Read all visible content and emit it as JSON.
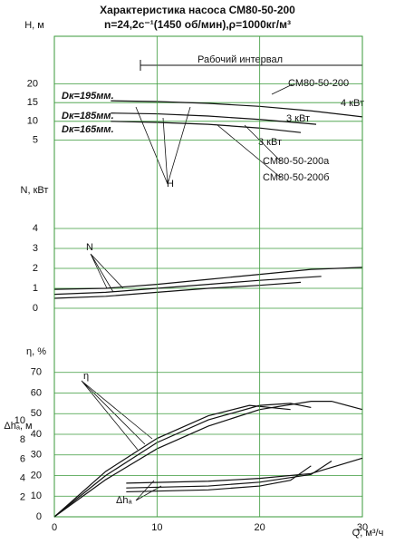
{
  "chart_data": [
    {
      "type": "line",
      "title": "Характеристика насоса СМ80-50-200",
      "subtitle": "n=24,2c⁻¹(1450 об/мин),ρ=1000кг/м³",
      "ylabel": "H, м",
      "xlim": [
        0,
        30
      ],
      "ylim": [
        0,
        25
      ],
      "yticks": [
        5,
        10,
        15,
        20
      ],
      "grid": true,
      "series": [
        {
          "name": "СМ80-50-200",
          "color": "#111111",
          "x": [
            5.5,
            10,
            15,
            20,
            25,
            30
          ],
          "values": [
            15.5,
            15.3,
            14.8,
            14,
            12.8,
            11.2
          ]
        },
        {
          "name": "СМ80-50-200а",
          "color": "#111111",
          "x": [
            5.5,
            10,
            15,
            20,
            25.5
          ],
          "values": [
            12.2,
            12,
            11.4,
            10.5,
            9.2
          ]
        },
        {
          "name": "СМ80-50-200б",
          "color": "#111111",
          "x": [
            5.5,
            10,
            15,
            20,
            24
          ],
          "values": [
            10,
            9.7,
            9.2,
            8.2,
            7
          ]
        }
      ],
      "annotations": [
        "Рабочий интервал",
        "Dк=195мм.",
        "Dк=185мм.",
        "Dк=165мм.",
        "4 кВт",
        "3 кВт",
        "3 кВт",
        "H"
      ]
    },
    {
      "type": "line",
      "ylabel": "N, кВт",
      "xlim": [
        0,
        30
      ],
      "ylim": [
        0,
        5
      ],
      "yticks": [
        0,
        1,
        2,
        3,
        4
      ],
      "grid": true,
      "series": [
        {
          "color": "#111111",
          "x": [
            0,
            5,
            10,
            15,
            20,
            25,
            30
          ],
          "values": [
            0.95,
            1,
            1.2,
            1.45,
            1.7,
            1.95,
            2.05
          ]
        },
        {
          "color": "#111111",
          "x": [
            0,
            5,
            10,
            15,
            20,
            26
          ],
          "values": [
            0.7,
            0.8,
            1,
            1.2,
            1.4,
            1.6
          ]
        },
        {
          "color": "#111111",
          "x": [
            0,
            5,
            10,
            15,
            20,
            24
          ],
          "values": [
            0.5,
            0.6,
            0.8,
            1,
            1.15,
            1.3
          ]
        }
      ],
      "annotations": [
        "N"
      ]
    },
    {
      "type": "line",
      "ylabel": "η, %",
      "xlim": [
        0,
        30
      ],
      "ylim": [
        0,
        80
      ],
      "yticks": [
        0,
        10,
        20,
        30,
        40,
        50,
        60,
        70
      ],
      "grid": true,
      "series": [
        {
          "color": "#111111",
          "x": [
            0,
            5,
            10,
            15,
            20,
            25,
            27,
            30
          ],
          "values": [
            0,
            18,
            33,
            44,
            52,
            56,
            56,
            52
          ]
        },
        {
          "color": "#111111",
          "x": [
            0,
            5,
            10,
            15,
            20,
            23,
            25
          ],
          "values": [
            0,
            20,
            36,
            47,
            54,
            55,
            53
          ]
        },
        {
          "color": "#111111",
          "x": [
            0,
            5,
            10,
            15,
            19,
            23
          ],
          "values": [
            0,
            22,
            38,
            49,
            54,
            52
          ]
        }
      ],
      "annotations": [
        "η"
      ]
    },
    {
      "type": "line",
      "ylabel": "Δhₐ, м",
      "xlabel": "Q, м³/ч",
      "xlim": [
        0,
        30
      ],
      "xticks": [
        0,
        10,
        20,
        30
      ],
      "ylim": [
        0,
        10
      ],
      "yticks": [
        2,
        4,
        6,
        8,
        10
      ],
      "grid": false,
      "series": [
        {
          "color": "#111111",
          "x": [
            7,
            15,
            20,
            25,
            30
          ],
          "values": [
            3.5,
            3.7,
            4,
            4.5,
            6.1
          ]
        },
        {
          "color": "#111111",
          "x": [
            7,
            15,
            20,
            25,
            27
          ],
          "values": [
            3,
            3.2,
            3.6,
            4.4,
            5.8
          ]
        },
        {
          "color": "#111111",
          "x": [
            7,
            15,
            20,
            23,
            25
          ],
          "values": [
            2.6,
            2.8,
            3.2,
            3.8,
            5.3
          ]
        }
      ],
      "annotations": [
        "Δhₐ"
      ]
    }
  ]
}
